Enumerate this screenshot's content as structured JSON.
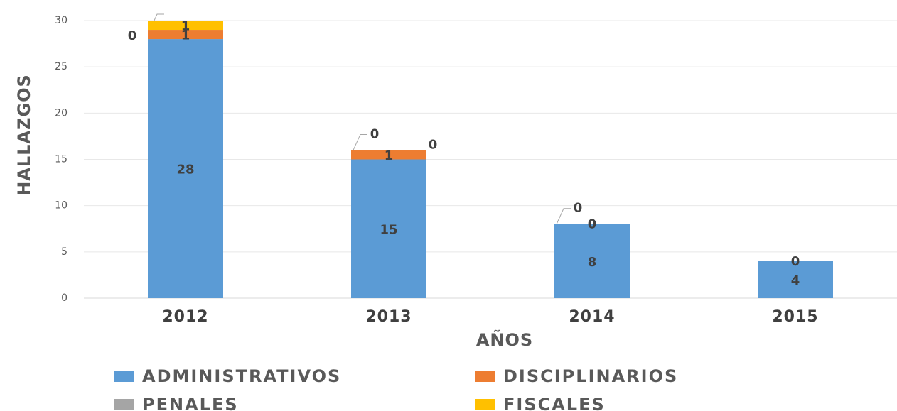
{
  "chart_data": {
    "type": "stacked_bar",
    "categories": [
      "2012",
      "2013",
      "2014",
      "2015"
    ],
    "series": [
      {
        "name": "ADMINISTRATIVOS",
        "color": "#5b9bd5",
        "values": [
          28,
          15,
          8,
          4
        ]
      },
      {
        "name": "DISCIPLINARIOS",
        "color": "#ed7d31",
        "values": [
          1,
          1,
          0,
          0
        ]
      },
      {
        "name": "PENALES",
        "color": "#a5a5a5",
        "values": [
          0,
          0,
          0,
          null
        ]
      },
      {
        "name": "FISCALES",
        "color": "#ffc000",
        "values": [
          1,
          0,
          null,
          null
        ]
      }
    ],
    "x_label": "AÑOS",
    "y_label": "HALLAZGOS",
    "ylim": [
      0,
      30
    ],
    "yticks": [
      0,
      5,
      10,
      15,
      20,
      25,
      30
    ],
    "grid": true
  }
}
